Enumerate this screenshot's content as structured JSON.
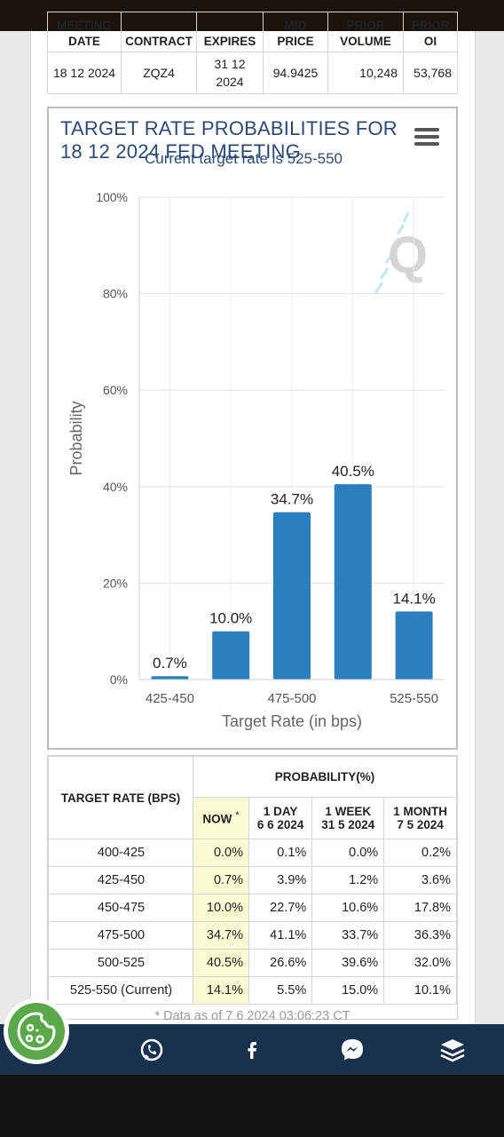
{
  "contract_table": {
    "headers": [
      "MEETING DATE",
      "CONTRACT",
      "EXPIRES",
      "MID PRICE",
      "PRIOR VOLUME",
      "PRIOR OI"
    ],
    "row": [
      "18 12 2024",
      "ZQZ4",
      "31 12 2024",
      "94.9425",
      "10,248",
      "53,768"
    ]
  },
  "chart": {
    "title": "TARGET RATE PROBABILITIES FOR 18 12 2024 FED MEETING",
    "subtitle": "Current target rate is 525-550",
    "menu_icon": "hamburger-menu-icon",
    "watermark_icon": "q-logo-icon"
  },
  "chart_data": {
    "type": "bar",
    "categories": [
      "425-450",
      "450-475",
      "475-500",
      "500-525",
      "525-550"
    ],
    "values": [
      0.7,
      10.0,
      34.7,
      40.5,
      14.1
    ],
    "data_labels": [
      "0.7%",
      "10.0%",
      "34.7%",
      "40.5%",
      "14.1%"
    ],
    "x_tick_labels": [
      "425-450",
      "",
      "475-500",
      "",
      "525-550"
    ],
    "xlabel": "Target Rate (in bps)",
    "ylabel": "Probability",
    "ylim": [
      0,
      100
    ],
    "y_ticks": [
      0,
      20,
      40,
      60,
      80,
      100
    ],
    "y_tick_labels": [
      "0%",
      "20%",
      "40%",
      "60%",
      "80%",
      "100%"
    ],
    "grid": true,
    "bar_color": "#2b7fbf"
  },
  "probability_table": {
    "target_rate_header": "TARGET RATE (BPS)",
    "probability_header": "PROBABILITY(%)",
    "columns": [
      {
        "label": "NOW",
        "marker": "*",
        "date": ""
      },
      {
        "label": "1 DAY",
        "date": "6 6 2024"
      },
      {
        "label": "1 WEEK",
        "date": "31 5 2024"
      },
      {
        "label": "1 MONTH",
        "date": "7 5 2024"
      }
    ],
    "rows": [
      {
        "rate": "400-425",
        "values": [
          "0.0%",
          "0.1%",
          "0.0%",
          "0.2%"
        ]
      },
      {
        "rate": "425-450",
        "values": [
          "0.7%",
          "3.9%",
          "1.2%",
          "3.6%"
        ]
      },
      {
        "rate": "450-475",
        "values": [
          "10.0%",
          "22.7%",
          "10.6%",
          "17.8%"
        ]
      },
      {
        "rate": "475-500",
        "values": [
          "34.7%",
          "41.1%",
          "33.7%",
          "36.3%"
        ]
      },
      {
        "rate": "500-525",
        "values": [
          "40.5%",
          "26.6%",
          "39.6%",
          "32.0%"
        ]
      },
      {
        "rate": "525-550 (Current)",
        "values": [
          "14.1%",
          "5.5%",
          "15.0%",
          "10.1%"
        ]
      }
    ],
    "footnote": "* Data as of 7 6 2024 03:06:23 CT"
  },
  "bottom_nav": {
    "icons": [
      "cookie-settings-icon",
      "whatsapp-icon",
      "facebook-icon",
      "messenger-icon",
      "layers-icon"
    ]
  }
}
